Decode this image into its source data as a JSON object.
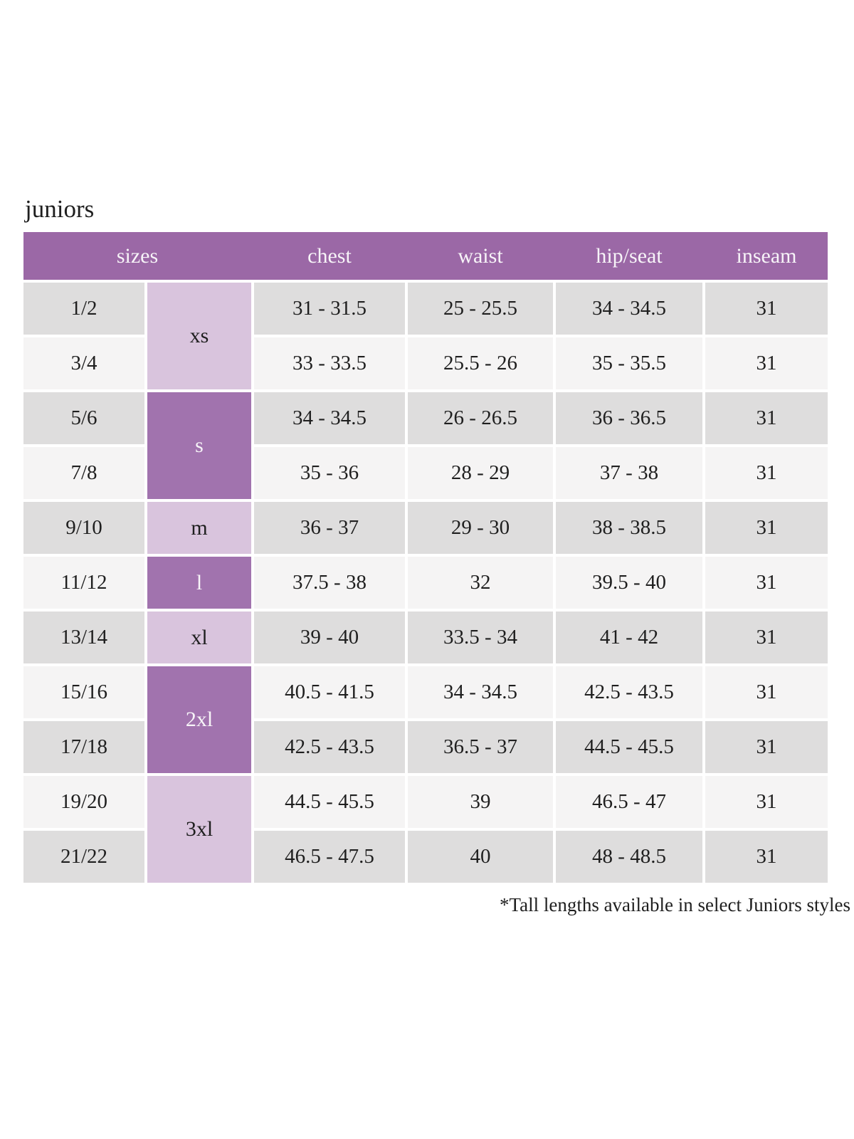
{
  "page": {
    "title": "juniors",
    "footnote": "*Tall lengths available in select Juniors styles"
  },
  "theme": {
    "header_bg": "#9b68a6",
    "header_text": "#f7f4f8",
    "group_dark_bg": "#a173ae",
    "group_dark_text": "#f7f4f8",
    "group_light_bg": "#d9c4dd",
    "group_light_text": "#1f1f1f",
    "row_gray": "#dedddd",
    "row_offwhite": "#f5f4f4",
    "text": "#1f1f1f"
  },
  "table": {
    "columns": [
      "sizes",
      "chest",
      "waist",
      "hip/seat",
      "inseam"
    ],
    "size_groups": [
      {
        "label": "xs",
        "rows": 2,
        "shade": "light"
      },
      {
        "label": "s",
        "rows": 2,
        "shade": "dark"
      },
      {
        "label": "m",
        "rows": 1,
        "shade": "light"
      },
      {
        "label": "l",
        "rows": 1,
        "shade": "dark"
      },
      {
        "label": "xl",
        "rows": 1,
        "shade": "light"
      },
      {
        "label": "2xl",
        "rows": 2,
        "shade": "dark"
      },
      {
        "label": "3xl",
        "rows": 2,
        "shade": "light"
      }
    ],
    "rows": [
      {
        "size": "1/2",
        "chest": "31 - 31.5",
        "waist": "25 - 25.5",
        "hip_seat": "34 - 34.5",
        "inseam": "31"
      },
      {
        "size": "3/4",
        "chest": "33 - 33.5",
        "waist": "25.5 - 26",
        "hip_seat": "35 - 35.5",
        "inseam": "31"
      },
      {
        "size": "5/6",
        "chest": "34 - 34.5",
        "waist": "26 - 26.5",
        "hip_seat": "36 - 36.5",
        "inseam": "31"
      },
      {
        "size": "7/8",
        "chest": "35 - 36",
        "waist": "28 - 29",
        "hip_seat": "37 - 38",
        "inseam": "31"
      },
      {
        "size": "9/10",
        "chest": "36 - 37",
        "waist": "29 - 30",
        "hip_seat": "38 - 38.5",
        "inseam": "31"
      },
      {
        "size": "11/12",
        "chest": "37.5 - 38",
        "waist": "32",
        "hip_seat": "39.5 - 40",
        "inseam": "31"
      },
      {
        "size": "13/14",
        "chest": "39 - 40",
        "waist": "33.5 - 34",
        "hip_seat": "41 - 42",
        "inseam": "31"
      },
      {
        "size": "15/16",
        "chest": "40.5 - 41.5",
        "waist": "34 - 34.5",
        "hip_seat": "42.5 - 43.5",
        "inseam": "31"
      },
      {
        "size": "17/18",
        "chest": "42.5 - 43.5",
        "waist": "36.5 - 37",
        "hip_seat": "44.5 - 45.5",
        "inseam": "31"
      },
      {
        "size": "19/20",
        "chest": "44.5 - 45.5",
        "waist": "39",
        "hip_seat": "46.5 - 47",
        "inseam": "31"
      },
      {
        "size": "21/22",
        "chest": "46.5 - 47.5",
        "waist": "40",
        "hip_seat": "48 - 48.5",
        "inseam": "31"
      }
    ]
  }
}
